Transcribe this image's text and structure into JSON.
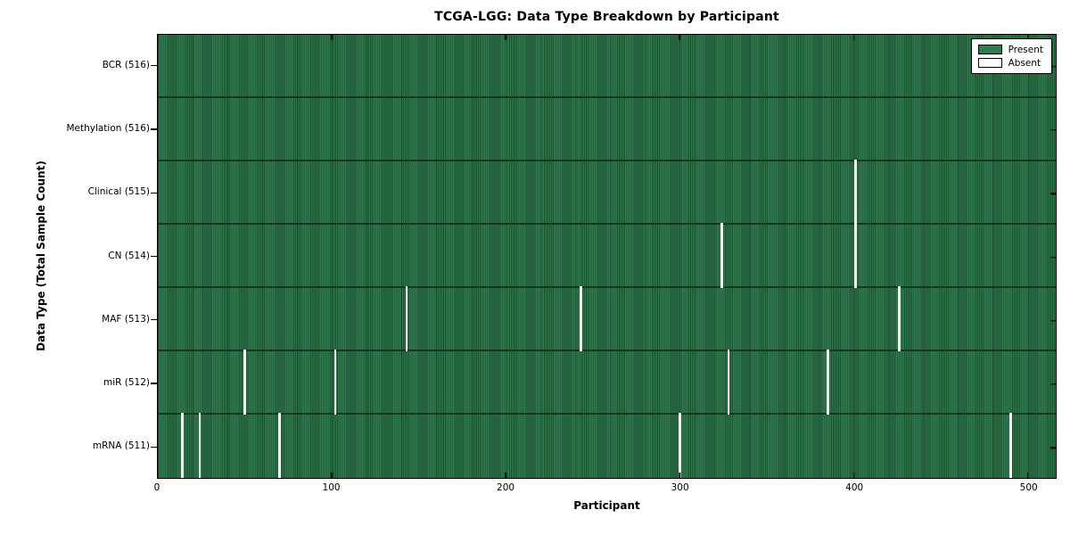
{
  "title": "TCGA-LGG: Data Type Breakdown by Participant",
  "chart_data": {
    "type": "heatmap",
    "title": "TCGA-LGG: Data Type Breakdown by Participant",
    "xlabel": "Participant",
    "ylabel": "Data Type (Total Sample Count)",
    "x_range": [
      0,
      516
    ],
    "n_participants": 516,
    "x_ticks": [
      0,
      100,
      200,
      300,
      400,
      500
    ],
    "grid": false,
    "legend": {
      "position": "upper right",
      "entries": [
        {
          "label": "Present",
          "color": "#2e7b4e"
        },
        {
          "label": "Absent",
          "color": "#ffffff"
        }
      ]
    },
    "rows": [
      {
        "label": "BCR (516)",
        "name": "bcr",
        "total": 516,
        "absent_participants": []
      },
      {
        "label": "Methylation (516)",
        "name": "methylation",
        "total": 516,
        "absent_participants": []
      },
      {
        "label": "Clinical (515)",
        "name": "clinical",
        "total": 515,
        "absent_participants": [
          401
        ]
      },
      {
        "label": "CN (514)",
        "name": "cn",
        "total": 514,
        "absent_participants": [
          324,
          401
        ]
      },
      {
        "label": "MAF (513)",
        "name": "maf",
        "total": 513,
        "absent_participants": [
          143,
          243,
          426
        ]
      },
      {
        "label": "miR (512)",
        "name": "mir",
        "total": 512,
        "absent_participants": [
          50,
          102,
          328,
          385
        ]
      },
      {
        "label": "mRNA (511)",
        "name": "mrna",
        "total": 511,
        "absent_participants": [
          14,
          24,
          70,
          300,
          490
        ]
      }
    ],
    "colors": {
      "present_fill": "#2e7b4e",
      "cell_edge": "#1c4e30",
      "row_divider": "#14371f",
      "absent_line": "#f4f4f0",
      "spine": "#000000",
      "background": "#ffffff"
    }
  }
}
